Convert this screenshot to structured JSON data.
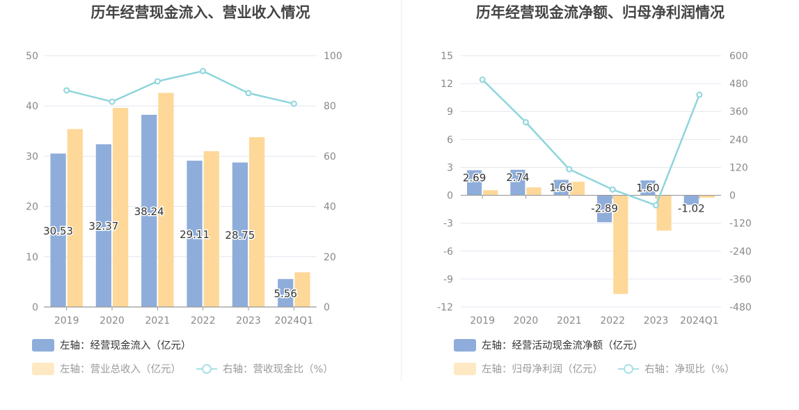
{
  "chart_data": [
    {
      "type": "bar",
      "title": "历年经营现金流入、营业收入情况",
      "categories": [
        "2019",
        "2020",
        "2021",
        "2022",
        "2023",
        "2024Q1"
      ],
      "y_left": {
        "min": 0,
        "max": 50,
        "ticks": [
          0,
          10,
          20,
          30,
          40,
          50
        ]
      },
      "y_right": {
        "min": 0,
        "max": 100,
        "ticks": [
          0,
          20,
          40,
          60,
          80,
          100
        ]
      },
      "grid": true,
      "series": [
        {
          "name": "左轴：经营现金流入（亿元）",
          "axis": "left",
          "kind": "bar",
          "color": "#8eadda",
          "values": [
            30.53,
            32.37,
            38.24,
            29.11,
            28.75,
            5.56
          ],
          "labels": [
            "30.53",
            "32.37",
            "38.24",
            "29.11",
            "28.75",
            "5.56"
          ]
        },
        {
          "name": "左轴：营业总收入（亿元）",
          "axis": "left",
          "kind": "bar",
          "color": "#fed899",
          "values": [
            35.4,
            39.6,
            42.6,
            31.0,
            33.8,
            6.9
          ]
        },
        {
          "name": "右轴：营收现金比（%）",
          "axis": "right",
          "kind": "line",
          "color": "#8dd5dc",
          "values": [
            86.2,
            81.7,
            89.8,
            93.9,
            85.1,
            80.9
          ]
        }
      ]
    },
    {
      "type": "bar",
      "title": "历年经营现金流净额、归母净利润情况",
      "categories": [
        "2019",
        "2020",
        "2021",
        "2022",
        "2023",
        "2024Q1"
      ],
      "y_left": {
        "min": -12,
        "max": 15,
        "ticks": [
          -12,
          -9,
          -6,
          -3,
          0,
          3,
          6,
          9,
          12,
          15
        ]
      },
      "y_right": {
        "min": -480,
        "max": 600,
        "ticks": [
          -480,
          -360,
          -240,
          -120,
          0,
          120,
          240,
          360,
          480,
          600
        ]
      },
      "grid": true,
      "series": [
        {
          "name": "左轴：经营活动现金流净额（亿元）",
          "axis": "left",
          "kind": "bar",
          "color": "#8eadda",
          "values": [
            2.69,
            2.74,
            1.66,
            -2.89,
            1.6,
            -1.02
          ],
          "labels": [
            "2.69",
            "2.74",
            "1.66",
            "-2.89",
            "1.60",
            "-1.02"
          ]
        },
        {
          "name": "左轴：归母净利润（亿元）",
          "axis": "left",
          "kind": "bar",
          "color": "#fed899",
          "values": [
            0.55,
            0.85,
            1.45,
            -10.6,
            -3.8,
            -0.25
          ]
        },
        {
          "name": "右轴：净现比（%）",
          "axis": "right",
          "kind": "line",
          "color": "#8dd5dc",
          "values": [
            497,
            314,
            112,
            25,
            -43,
            432
          ]
        }
      ]
    }
  ]
}
